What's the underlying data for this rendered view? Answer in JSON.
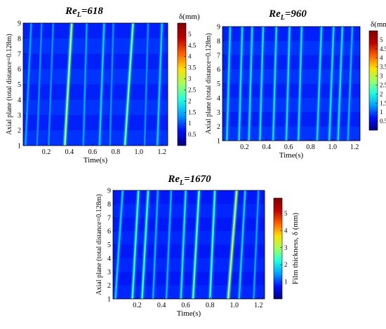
{
  "colormap": [
    "#00007f",
    "#0010ff",
    "#00a0ff",
    "#20ffe0",
    "#a0ff60",
    "#ffe000",
    "#ff6000",
    "#c00000",
    "#800000"
  ],
  "chart_data": [
    {
      "type": "heatmap",
      "title": "Re",
      "title_sub": "L",
      "title_suffix": "=618",
      "xlabel": "Time(s)",
      "ylabel": "Axial plane (total distance=0.128m)",
      "xlim": [
        0,
        1.25
      ],
      "ylim": [
        1,
        9
      ],
      "xticks": [
        0.2,
        0.4,
        0.6,
        0.8,
        1.0,
        1.2
      ],
      "xtick_labels": [
        "0.2",
        "0.4",
        "0.6",
        "0.8",
        "1.0",
        "1.2"
      ],
      "yticks": [
        1,
        2,
        3,
        4,
        5,
        6,
        7,
        8,
        9
      ],
      "yticks_labels": [
        "1",
        "2",
        "3",
        "4",
        "5",
        "6",
        "7",
        "8",
        "9"
      ],
      "colorbar": {
        "label": "δ(mm)",
        "range": [
          0,
          5.5
        ],
        "ticks": [
          0.5,
          1,
          1.5,
          2,
          2.5,
          3,
          3.5,
          4,
          4.5,
          5
        ],
        "tick_labels": [
          "0.5",
          "1",
          "1.5",
          "2",
          "2.5",
          "3",
          "3.5",
          "4",
          "4.5",
          "5"
        ]
      },
      "waves": [
        {
          "t_bottom": 0.02,
          "t_top": 0.07,
          "thickness": 1.4
        },
        {
          "t_bottom": 0.12,
          "t_top": 0.16,
          "thickness": 1.3
        },
        {
          "t_bottom": 0.22,
          "t_top": 0.26,
          "thickness": 1.3
        },
        {
          "t_bottom": 0.36,
          "t_top": 0.42,
          "thickness": 2.8
        },
        {
          "t_bottom": 0.52,
          "t_top": 0.55,
          "thickness": 1.4
        },
        {
          "t_bottom": 0.66,
          "t_top": 0.7,
          "thickness": 1.7
        },
        {
          "t_bottom": 0.75,
          "t_top": 0.78,
          "thickness": 1.3
        },
        {
          "t_bottom": 0.88,
          "t_top": 0.95,
          "thickness": 2.5
        },
        {
          "t_bottom": 1.05,
          "t_top": 1.08,
          "thickness": 1.3
        },
        {
          "t_bottom": 1.16,
          "t_top": 1.2,
          "thickness": 1.7
        }
      ]
    },
    {
      "type": "heatmap",
      "title": "Re",
      "title_sub": "L",
      "title_suffix": "=960",
      "xlabel": "Time(s)",
      "ylabel": "Axial plane (total distance=0.128m)",
      "xlim": [
        0,
        1.25
      ],
      "ylim": [
        1,
        9
      ],
      "xticks": [
        0.2,
        0.4,
        0.6,
        0.8,
        1.0,
        1.2
      ],
      "xtick_labels": [
        "0.2",
        "0.4",
        "0.6",
        "0.8",
        "1.0",
        "1.2"
      ],
      "yticks": [
        1,
        2,
        3,
        4,
        5,
        6,
        7,
        8,
        9
      ],
      "yticks_labels": [
        "1",
        "2",
        "3",
        "4",
        "5",
        "6",
        "7",
        "8",
        "9"
      ],
      "colorbar": {
        "label": "δ(mm)",
        "range": [
          0,
          5.5
        ],
        "ticks": [
          0.5,
          1,
          1.5,
          2,
          2.5,
          3,
          3.5,
          4,
          4.5,
          5
        ],
        "tick_labels": [
          "0.5",
          "1",
          "1.5",
          "2",
          "2.5",
          "3",
          "3.5",
          "4",
          "4.5",
          "5"
        ]
      },
      "waves": [
        {
          "t_bottom": 0.04,
          "t_top": 0.07,
          "thickness": 1.8
        },
        {
          "t_bottom": 0.15,
          "t_top": 0.18,
          "thickness": 1.8
        },
        {
          "t_bottom": 0.24,
          "t_top": 0.27,
          "thickness": 1.8
        },
        {
          "t_bottom": 0.34,
          "t_top": 0.37,
          "thickness": 1.8
        },
        {
          "t_bottom": 0.46,
          "t_top": 0.49,
          "thickness": 1.8
        },
        {
          "t_bottom": 0.58,
          "t_top": 0.61,
          "thickness": 1.8
        },
        {
          "t_bottom": 0.69,
          "t_top": 0.72,
          "thickness": 1.8
        },
        {
          "t_bottom": 0.86,
          "t_top": 0.9,
          "thickness": 1.8
        },
        {
          "t_bottom": 0.97,
          "t_top": 1.01,
          "thickness": 1.8
        },
        {
          "t_bottom": 1.05,
          "t_top": 1.09,
          "thickness": 1.8
        },
        {
          "t_bottom": 1.14,
          "t_top": 1.18,
          "thickness": 1.5
        }
      ]
    },
    {
      "type": "heatmap",
      "title": "Re",
      "title_sub": "L",
      "title_suffix": "=1670",
      "xlabel": "Time(s)",
      "ylabel": "Axial plane (total distance=0.128m)",
      "xlim": [
        0,
        1.25
      ],
      "ylim": [
        1,
        9
      ],
      "xticks": [
        0.2,
        0.4,
        0.6,
        0.8,
        1.0,
        1.2
      ],
      "xtick_labels": [
        "0.2",
        "0.4",
        "0.6",
        "0.8",
        "1.0",
        "1.2"
      ],
      "yticks": [
        1,
        2,
        3,
        4,
        5,
        6,
        7,
        8,
        9
      ],
      "yticks_labels": [
        "1",
        "2",
        "3",
        "4",
        "5",
        "6",
        "7",
        "8",
        "9"
      ],
      "colorbar": {
        "label": "Film thickness, δ (mm)",
        "range": [
          0,
          5.9
        ],
        "ticks": [
          1,
          2,
          3,
          4,
          5
        ],
        "tick_labels": [
          "1",
          "2",
          "3",
          "4",
          "5"
        ]
      },
      "waves": [
        {
          "t_bottom": 0.02,
          "t_top": 0.08,
          "thickness": 1.8
        },
        {
          "t_bottom": 0.16,
          "t_top": 0.21,
          "thickness": 2.3
        },
        {
          "t_bottom": 0.24,
          "t_top": 0.29,
          "thickness": 2.3
        },
        {
          "t_bottom": 0.33,
          "t_top": 0.37,
          "thickness": 1.6
        },
        {
          "t_bottom": 0.44,
          "t_top": 0.48,
          "thickness": 1.6
        },
        {
          "t_bottom": 0.56,
          "t_top": 0.6,
          "thickness": 2.0
        },
        {
          "t_bottom": 0.66,
          "t_top": 0.71,
          "thickness": 2.5
        },
        {
          "t_bottom": 0.8,
          "t_top": 0.84,
          "thickness": 2.3
        },
        {
          "t_bottom": 0.95,
          "t_top": 1.02,
          "thickness": 3.2
        },
        {
          "t_bottom": 1.04,
          "t_top": 1.09,
          "thickness": 1.8
        },
        {
          "t_bottom": 1.16,
          "t_top": 1.2,
          "thickness": 1.5
        }
      ]
    }
  ]
}
